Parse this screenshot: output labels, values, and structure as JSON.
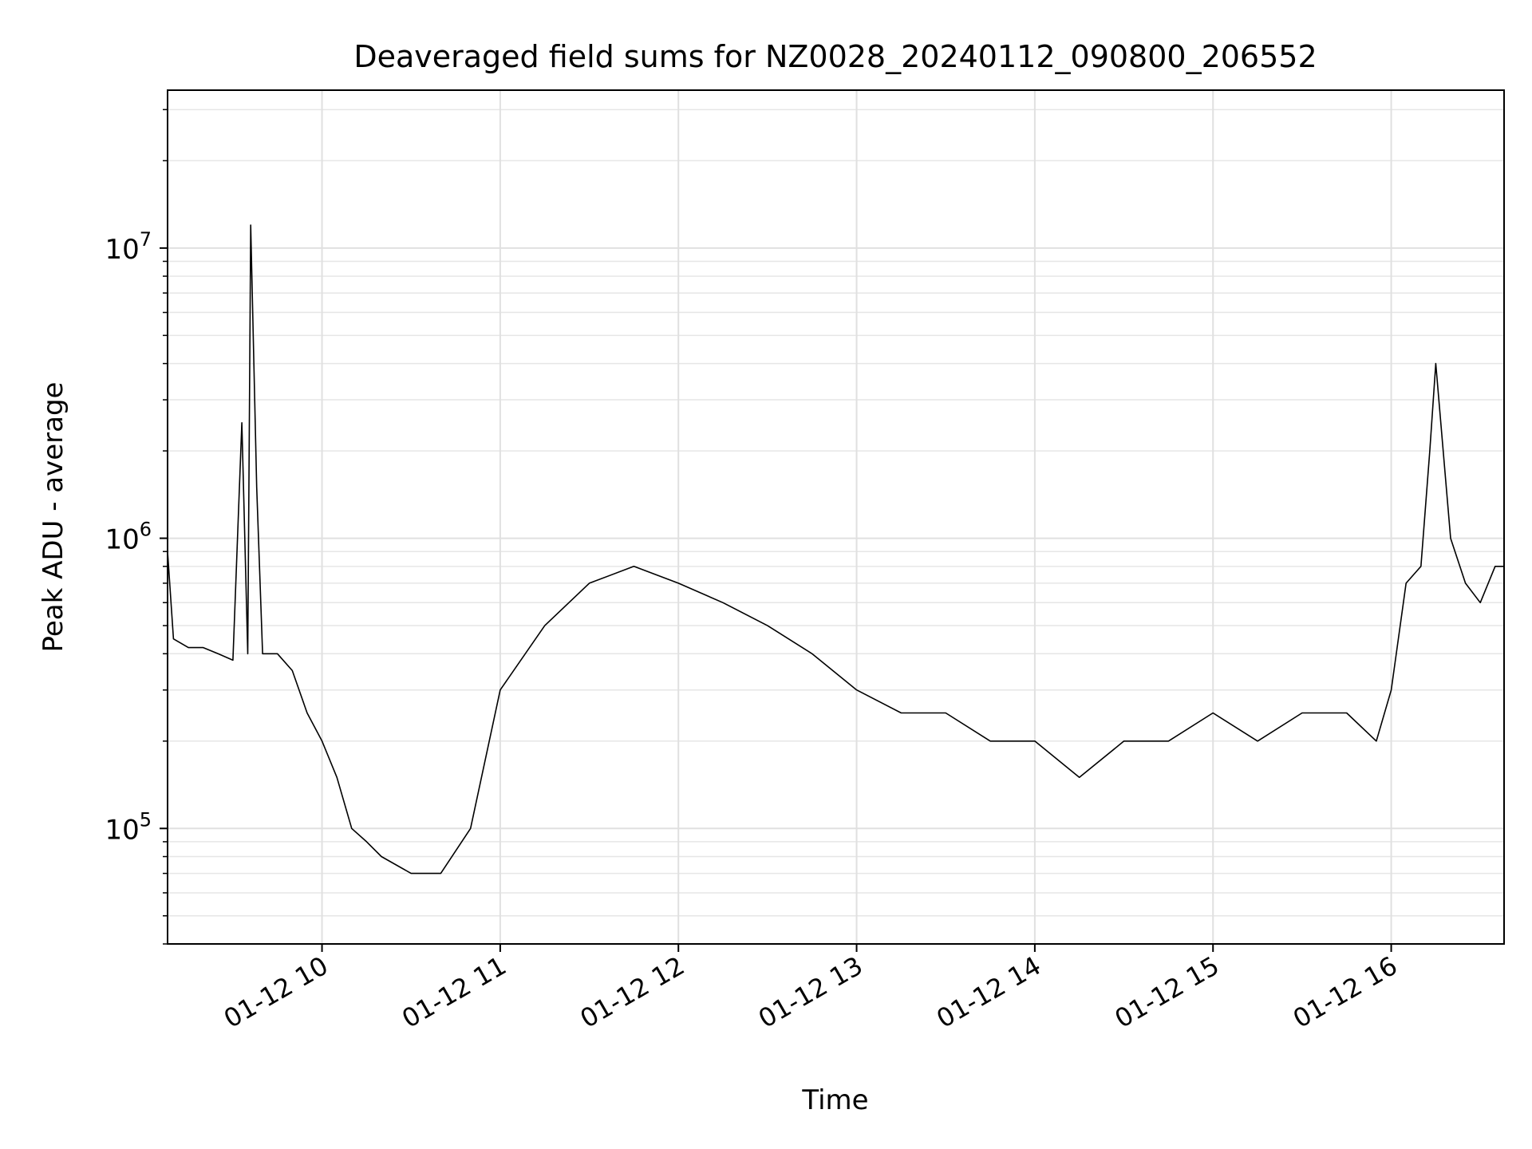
{
  "chart_data": {
    "type": "line",
    "title": "Deaveraged field sums for NZ0028_20240112_090800_206552",
    "xlabel": "Time",
    "ylabel": "Peak ADU - average",
    "x_range": [
      "2024-01-12 09:08",
      "2024-01-12 16:38"
    ],
    "ylim": [
      40000,
      35000000
    ],
    "yscale": "log",
    "grid": true,
    "line_color": "#000000",
    "x_ticks": [
      {
        "value": "2024-01-12 10:00",
        "label": "01-12 10"
      },
      {
        "value": "2024-01-12 11:00",
        "label": "01-12 11"
      },
      {
        "value": "2024-01-12 12:00",
        "label": "01-12 12"
      },
      {
        "value": "2024-01-12 13:00",
        "label": "01-12 13"
      },
      {
        "value": "2024-01-12 14:00",
        "label": "01-12 14"
      },
      {
        "value": "2024-01-12 15:00",
        "label": "01-12 15"
      },
      {
        "value": "2024-01-12 16:00",
        "label": "01-12 16"
      }
    ],
    "y_ticks": [
      {
        "value": 100000,
        "base": "10",
        "exp": "5"
      },
      {
        "value": 1000000,
        "base": "10",
        "exp": "6"
      },
      {
        "value": 10000000,
        "base": "10",
        "exp": "7"
      }
    ],
    "series": [
      {
        "x": [
          "2024-01-12 09:08",
          "2024-01-12 09:10",
          "2024-01-12 09:15",
          "2024-01-12 09:20",
          "2024-01-12 09:25",
          "2024-01-12 09:30",
          "2024-01-12 09:33",
          "2024-01-12 09:35",
          "2024-01-12 09:36",
          "2024-01-12 09:38",
          "2024-01-12 09:40",
          "2024-01-12 09:45",
          "2024-01-12 09:50",
          "2024-01-12 09:55",
          "2024-01-12 10:00",
          "2024-01-12 10:05",
          "2024-01-12 10:10",
          "2024-01-12 10:15",
          "2024-01-12 10:20",
          "2024-01-12 10:30",
          "2024-01-12 10:40",
          "2024-01-12 10:50",
          "2024-01-12 11:00",
          "2024-01-12 11:15",
          "2024-01-12 11:30",
          "2024-01-12 11:45",
          "2024-01-12 12:00",
          "2024-01-12 12:15",
          "2024-01-12 12:30",
          "2024-01-12 12:45",
          "2024-01-12 13:00",
          "2024-01-12 13:15",
          "2024-01-12 13:30",
          "2024-01-12 13:45",
          "2024-01-12 14:00",
          "2024-01-12 14:15",
          "2024-01-12 14:30",
          "2024-01-12 14:45",
          "2024-01-12 15:00",
          "2024-01-12 15:15",
          "2024-01-12 15:30",
          "2024-01-12 15:45",
          "2024-01-12 15:55",
          "2024-01-12 16:00",
          "2024-01-12 16:05",
          "2024-01-12 16:10",
          "2024-01-12 16:13",
          "2024-01-12 16:15",
          "2024-01-12 16:20",
          "2024-01-12 16:25",
          "2024-01-12 16:30",
          "2024-01-12 16:35",
          "2024-01-12 16:38"
        ],
        "y": [
          900000,
          450000,
          420000,
          420000,
          400000,
          380000,
          2500000,
          400000,
          12000000,
          1500000,
          400000,
          400000,
          350000,
          250000,
          200000,
          150000,
          100000,
          90000,
          80000,
          70000,
          70000,
          100000,
          300000,
          500000,
          700000,
          800000,
          700000,
          600000,
          500000,
          400000,
          300000,
          250000,
          250000,
          200000,
          200000,
          150000,
          200000,
          200000,
          250000,
          200000,
          250000,
          250000,
          200000,
          300000,
          700000,
          800000,
          2000000,
          4000000,
          1000000,
          700000,
          600000,
          800000,
          800000
        ]
      }
    ]
  }
}
